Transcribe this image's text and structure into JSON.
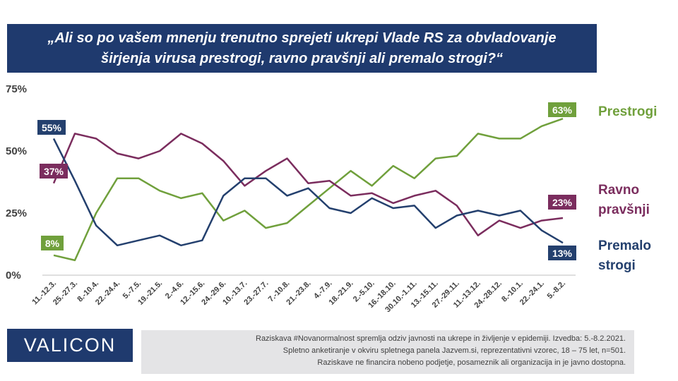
{
  "title": "„Ali so po vašem mnenju trenutno sprejeti ukrepi Vlade RS za obvladovanje širjenja virusa prestrogi, ravno pravšnji ali premalo strogi?“",
  "logo_text": "VALICON",
  "note_lines": [
    "Raziskava #Novanormalnost spremlja odziv javnosti na ukrepe in življenje v epidemiji. Izvedba: 5.-8.2.2021.",
    "Spletno anketiranje v okviru spletnega panela Jazvem.si, reprezentativni vzorec, 18 – 75 let, n=501.",
    "Raziskave ne financira nobeno podjetje, posameznik ali organizacija in je javno dostopna."
  ],
  "chart_data": {
    "type": "line",
    "ylim": [
      0,
      75
    ],
    "yticks": [
      "0%",
      "25%",
      "50%",
      "75%"
    ],
    "categories": [
      "11.-12.3.",
      "25.-27.3.",
      "8.-10.4.",
      "22.-24.4.",
      "5.-7.5.",
      "19.-21.5.",
      "2.-4.6.",
      "12.-15.6.",
      "24.-29.6.",
      "10.-13.7.",
      "23.-27.7.",
      "7.-10.8.",
      "21.-23.8.",
      "4.-7.9.",
      "18.-21.9.",
      "2.-5.10.",
      "16.-18.10.",
      "30.10.-1.11.",
      "13.-15.11.",
      "27.-29.11.",
      "11.-13.12.",
      "24.-28.12.",
      "8.-10.1.",
      "22.-24.1.",
      "5.-8.2."
    ],
    "series": [
      {
        "name": "Prestrogi",
        "color": "#70a03c",
        "start_label": "8%",
        "end_label": "63%",
        "values": [
          8,
          6,
          25,
          39,
          39,
          34,
          31,
          33,
          22,
          26,
          19,
          21,
          28,
          35,
          42,
          36,
          44,
          39,
          47,
          48,
          57,
          55,
          55,
          60,
          63
        ]
      },
      {
        "name": "Ravno pravšnji",
        "color": "#7b2d5e",
        "start_label": "37%",
        "end_label": "23%",
        "values": [
          37,
          57,
          55,
          49,
          47,
          50,
          57,
          53,
          46,
          36,
          42,
          47,
          37,
          38,
          32,
          33,
          29,
          32,
          34,
          28,
          16,
          22,
          19,
          22,
          23
        ]
      },
      {
        "name": "Premalo strogi",
        "color": "#24406e",
        "start_label": "55%",
        "end_label": "13%",
        "values": [
          55,
          38,
          20,
          12,
          14,
          16,
          12,
          14,
          32,
          39,
          39,
          32,
          35,
          27,
          25,
          31,
          27,
          28,
          19,
          24,
          26,
          24,
          26,
          18,
          13
        ]
      }
    ],
    "series_labels": {
      "prestrogi": "Prestrogi",
      "ravno_line1": "Ravno",
      "ravno_line2": "pravšnji",
      "premalo_line1": "Premalo",
      "premalo_line2": "strogi"
    }
  }
}
